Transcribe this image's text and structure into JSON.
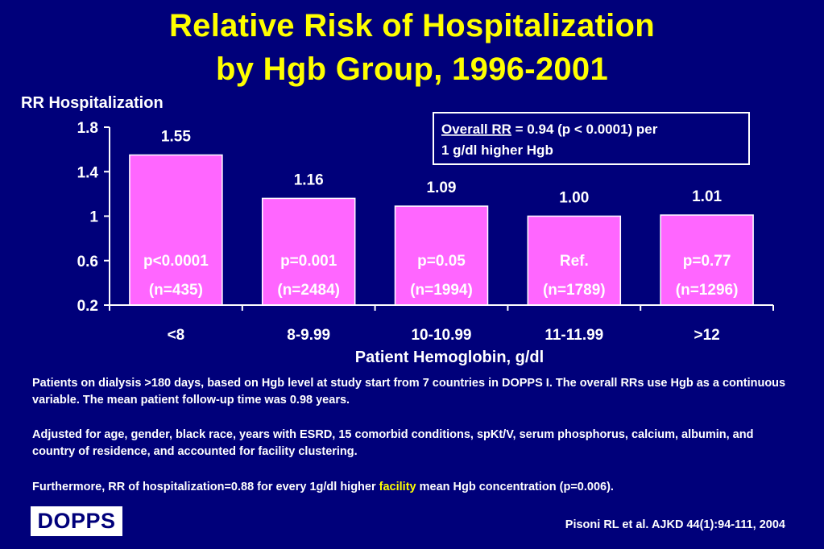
{
  "title_line1": "Relative Risk of Hospitalization",
  "title_line2": "by Hgb Group, 1996-2001",
  "chart_data": {
    "type": "bar",
    "ylabel": "RR Hospitalization",
    "xlabel": "Patient Hemoglobin, g/dl",
    "ylim": [
      0.2,
      1.8
    ],
    "yticks": [
      0.2,
      0.6,
      1,
      1.4,
      1.8
    ],
    "ytick_labels": [
      "0.2",
      "0.6",
      "1",
      "1.4",
      "1.8"
    ],
    "categories": [
      "<8",
      "8-9.99",
      "10-10.99",
      "11-11.99",
      ">12"
    ],
    "values": [
      1.55,
      1.16,
      1.09,
      1.0,
      1.01
    ],
    "value_labels": [
      "1.55",
      "1.16",
      "1.09",
      "1.00",
      "1.01"
    ],
    "p_labels": [
      "p<0.0001",
      "p=0.001",
      "p=0.05",
      "Ref.",
      "p=0.77"
    ],
    "n_labels": [
      "(n=435)",
      "(n=2484)",
      "(n=1994)",
      "(n=1789)",
      "(n=1296)"
    ],
    "bar_color": "#ff66ff",
    "annotation": {
      "underlined": "Overall RR",
      "text1": " = 0.94 (p < 0.0001) per",
      "text2": "1 g/dl higher Hgb"
    }
  },
  "footnotes": {
    "f1": "Patients on dialysis >180 days, based on Hgb level at study start from 7 countries in DOPPS I. The overall RRs use Hgb as a continuous variable.  The mean patient follow-up time was 0.98 years.",
    "f2": "Adjusted for age, gender, black race, years with ESRD, 15 comorbid conditions, spKt/V, serum phosphorus, calcium, albumin, and country of residence, and accounted for facility clustering.",
    "f3_before": "Furthermore, RR of hospitalization=0.88 for every 1g/dl higher ",
    "f3_highlight": "facility",
    "f3_after": " mean Hgb concentration (p=0.006)."
  },
  "logo": "DOPPS",
  "citation": "Pisoni RL et al. AJKD 44(1):94-111, 2004",
  "colors": {
    "background": "#00007a",
    "title": "#ffff00",
    "bar": "#ff66ff",
    "text": "#ffffff"
  }
}
